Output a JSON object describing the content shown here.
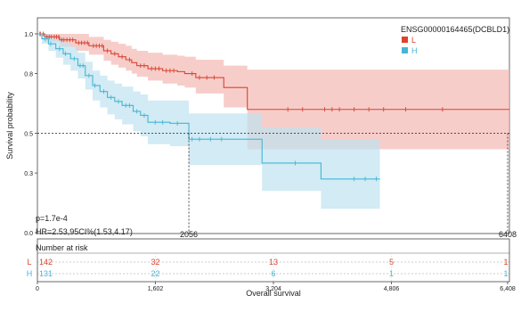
{
  "chart_data": {
    "type": "line",
    "subtype": "kaplan-meier",
    "title": "",
    "xlabel": "Overall survival",
    "ylabel": "Survival probability",
    "xlim": [
      0,
      6408
    ],
    "ylim": [
      0,
      1
    ],
    "x_ticks": [
      0,
      1602,
      3204,
      4806,
      6408
    ],
    "x_tick_labels": [
      "0",
      "1,602",
      "3,204",
      "4,806",
      "6,408"
    ],
    "y_ticks": [
      0,
      0.3,
      0.5,
      0.8,
      1
    ],
    "y_tick_labels": [
      "0.0",
      "0.3",
      "0.5",
      "0.8",
      "1.0"
    ],
    "legend": {
      "title": "ENSG00000164465(DCBLD1)",
      "position": "top-right"
    },
    "annotations": {
      "pvalue": "p=1.7e-4",
      "hr": "HR=2.53,95CI%(1.53,4.17)"
    },
    "median_survival": {
      "level": 0.5,
      "values": [
        2056,
        6408
      ],
      "labels": [
        "2056",
        "6408"
      ]
    },
    "series": [
      {
        "name": "L",
        "color": "#d9442f",
        "band_color": "#f4b8b4",
        "x": [
          0,
          100,
          300,
          520,
          700,
          900,
          1000,
          1100,
          1200,
          1280,
          1350,
          1500,
          1700,
          1900,
          2000,
          2150,
          2450,
          2530,
          2850,
          6408
        ],
        "y": [
          1.0,
          0.985,
          0.97,
          0.955,
          0.94,
          0.915,
          0.9,
          0.885,
          0.87,
          0.855,
          0.84,
          0.825,
          0.815,
          0.81,
          0.8,
          0.78,
          0.78,
          0.73,
          0.62,
          0.62
        ],
        "lower": [
          1.0,
          0.96,
          0.935,
          0.915,
          0.895,
          0.865,
          0.845,
          0.83,
          0.815,
          0.8,
          0.785,
          0.765,
          0.75,
          0.74,
          0.73,
          0.7,
          0.7,
          0.63,
          0.42,
          0.42
        ],
        "upper": [
          1.0,
          1.0,
          1.0,
          1.0,
          0.985,
          0.97,
          0.96,
          0.95,
          0.94,
          0.925,
          0.915,
          0.905,
          0.895,
          0.89,
          0.885,
          0.87,
          0.87,
          0.84,
          0.82,
          0.82
        ],
        "censor_x": [
          40,
          80,
          130,
          160,
          190,
          230,
          260,
          290,
          330,
          360,
          400,
          440,
          480,
          560,
          600,
          640,
          680,
          760,
          800,
          840,
          880,
          950,
          1050,
          1150,
          1250,
          1400,
          1450,
          1550,
          1600,
          1650,
          1750,
          1800,
          1850,
          2100,
          2200,
          2300,
          2400,
          3400,
          3600,
          3900,
          4000,
          4100,
          4300,
          4500,
          4700,
          5000,
          5500
        ]
      },
      {
        "name": "H",
        "color": "#45b6d6",
        "band_color": "#bfe3f0",
        "x": [
          0,
          60,
          150,
          250,
          350,
          450,
          550,
          650,
          750,
          850,
          950,
          1050,
          1150,
          1300,
          1400,
          1500,
          1800,
          2056,
          2600,
          3050,
          3850,
          4000,
          4650
        ],
        "y": [
          1.0,
          0.975,
          0.95,
          0.925,
          0.9,
          0.875,
          0.84,
          0.79,
          0.74,
          0.71,
          0.68,
          0.66,
          0.64,
          0.61,
          0.59,
          0.555,
          0.55,
          0.47,
          0.47,
          0.35,
          0.27,
          0.27,
          0.27
        ],
        "lower": [
          1.0,
          0.95,
          0.915,
          0.88,
          0.845,
          0.815,
          0.775,
          0.72,
          0.665,
          0.63,
          0.595,
          0.57,
          0.545,
          0.51,
          0.485,
          0.445,
          0.435,
          0.34,
          0.34,
          0.21,
          0.12,
          0.12,
          0.12
        ],
        "upper": [
          1.0,
          1.0,
          0.99,
          0.975,
          0.955,
          0.935,
          0.905,
          0.86,
          0.815,
          0.79,
          0.765,
          0.75,
          0.735,
          0.71,
          0.695,
          0.665,
          0.665,
          0.6,
          0.6,
          0.53,
          0.47,
          0.47,
          0.47
        ],
        "censor_x": [
          30,
          100,
          180,
          300,
          380,
          500,
          580,
          620,
          700,
          780,
          900,
          1000,
          1100,
          1200,
          1250,
          1350,
          1450,
          1600,
          1700,
          1900,
          2100,
          2200,
          2350,
          2500,
          3500,
          4300,
          4450,
          4600
        ]
      }
    ],
    "risk_table": {
      "title": "Number at risk",
      "groups": [
        {
          "name": "L",
          "color": "#d9442f",
          "values": [
            "142",
            "32",
            "13",
            "5",
            "1"
          ]
        },
        {
          "name": "H",
          "color": "#45b6d6",
          "values": [
            "131",
            "22",
            "6",
            "1",
            "1"
          ]
        }
      ]
    }
  }
}
